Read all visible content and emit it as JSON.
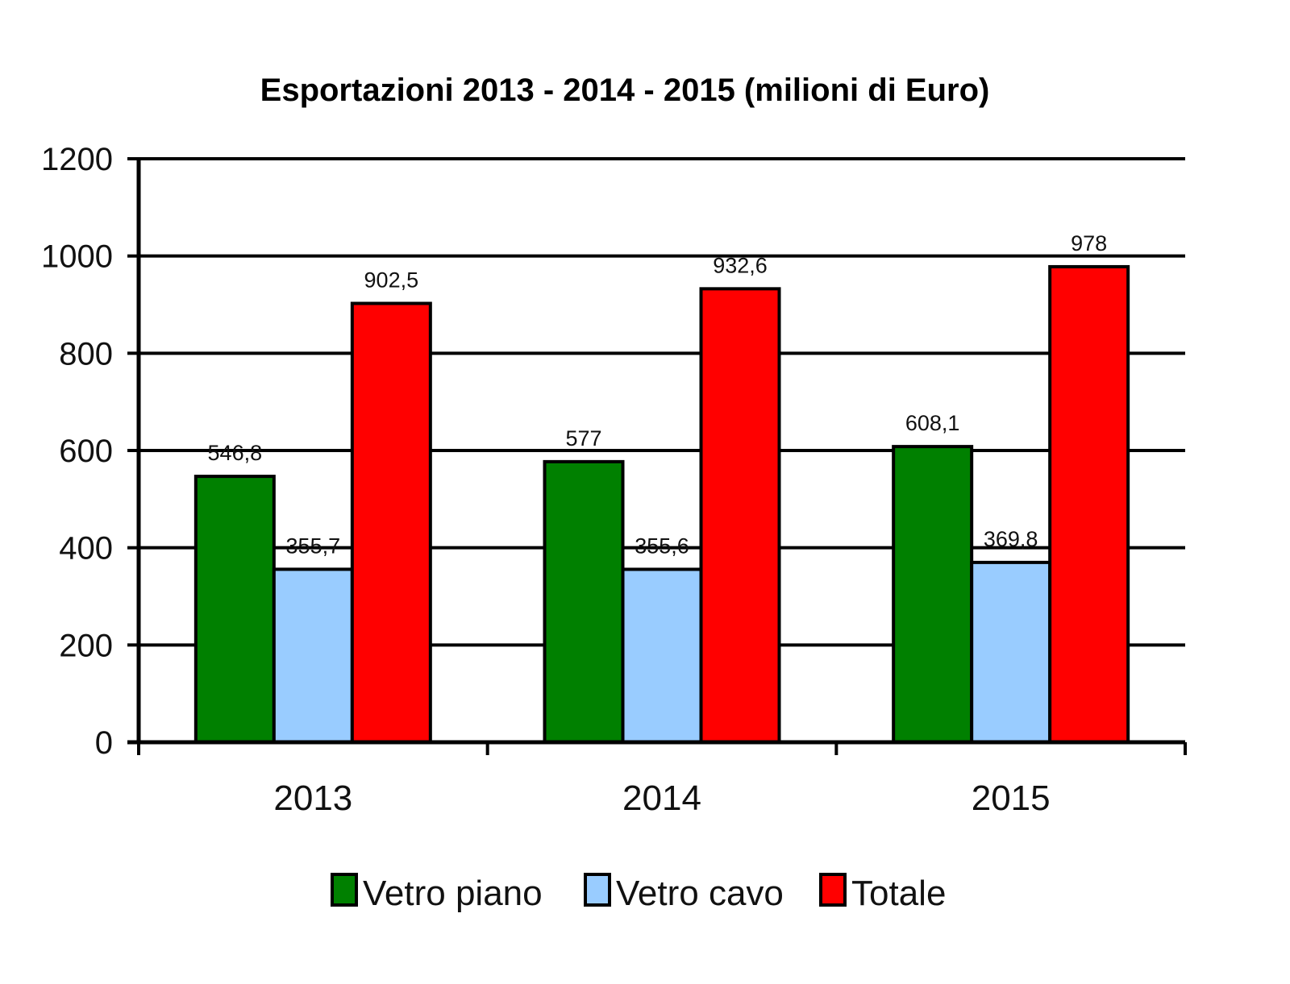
{
  "chart_data": {
    "type": "bar",
    "title": "Esportazioni 2013 - 2014 - 2015 (milioni di Euro)",
    "xlabel": "",
    "ylabel": "",
    "categories": [
      "2013",
      "2014",
      "2015"
    ],
    "ylim": [
      0,
      1200
    ],
    "yticks": [
      0,
      200,
      400,
      600,
      800,
      1000,
      1200
    ],
    "grid": true,
    "legend_position": "bottom",
    "series": [
      {
        "name": "Vetro piano",
        "color": "#008000",
        "values": [
          546.8,
          577,
          608.1
        ],
        "labels": [
          "546,8",
          "577",
          "608,1"
        ]
      },
      {
        "name": "Vetro cavo",
        "color": "#99ccff",
        "values": [
          355.7,
          355.6,
          369.8
        ],
        "labels": [
          "355,7",
          "355,6",
          "369,8"
        ]
      },
      {
        "name": "Totale",
        "color": "#ff0000",
        "values": [
          902.5,
          932.6,
          978
        ],
        "labels": [
          "902,5",
          "932,6",
          "978"
        ]
      }
    ]
  }
}
